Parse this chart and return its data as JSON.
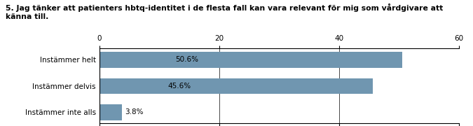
{
  "title_line1": "5. Jag tänker att patienters hbtq-identitet i de flesta fall kan vara relevant för mig som vårdgivare att",
  "title_line2": "känna till.",
  "categories": [
    "Instämmer helt",
    "Instämmer delvis",
    "Instämmer inte alls"
  ],
  "values": [
    50.6,
    45.6,
    3.8
  ],
  "labels": [
    "50.6%",
    "45.6%",
    "3.8%"
  ],
  "bar_color": "#7096b0",
  "xlim": [
    0,
    60
  ],
  "xticks": [
    0,
    20,
    40,
    60
  ],
  "title_fontsize": 7.8,
  "label_fontsize": 7.5,
  "tick_fontsize": 7.5,
  "background_color": "#ffffff"
}
